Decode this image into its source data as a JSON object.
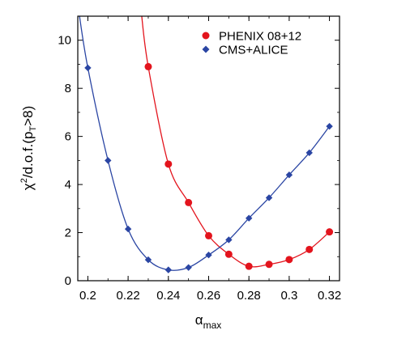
{
  "chart_data": {
    "type": "line",
    "xlabel": "α",
    "xlabel_sub": "max",
    "ylabel": "χ",
    "ylabel_sup": "2",
    "ylabel_rest": "/d.o.f.(p",
    "ylabel_sub": "T",
    "ylabel_end": ">8)",
    "xlim": [
      0.195,
      0.325
    ],
    "ylim": [
      0,
      11
    ],
    "x_ticks": [
      0.2,
      0.22,
      0.24,
      0.26,
      0.28,
      0.3,
      0.32
    ],
    "x_tick_labels": [
      "0.2",
      "0.22",
      "0.24",
      "0.26",
      "0.28",
      "0.3",
      "0.32"
    ],
    "y_ticks": [
      0,
      2,
      4,
      6,
      8,
      10
    ],
    "y_tick_labels": [
      "0",
      "2",
      "4",
      "6",
      "8",
      "10"
    ],
    "legend_position": "top-right",
    "grid": false,
    "series": [
      {
        "name": "PHENIX 08+12",
        "color": "#e3141d",
        "marker": "circle",
        "x": [
          0.23,
          0.24,
          0.25,
          0.26,
          0.27,
          0.28,
          0.29,
          0.3,
          0.31,
          0.32
        ],
        "y": [
          8.9,
          4.85,
          3.25,
          1.87,
          1.1,
          0.6,
          0.68,
          0.88,
          1.3,
          2.03
        ],
        "curve_extends_to": [
          0.2265,
          11.2
        ]
      },
      {
        "name": "CMS+ALICE",
        "color": "#2a45a3",
        "marker": "diamond",
        "x": [
          0.2,
          0.21,
          0.22,
          0.23,
          0.24,
          0.25,
          0.26,
          0.27,
          0.28,
          0.29,
          0.3,
          0.31,
          0.32
        ],
        "y": [
          8.85,
          5.0,
          2.15,
          0.87,
          0.45,
          0.55,
          1.07,
          1.7,
          2.6,
          3.45,
          4.4,
          5.32,
          6.42
        ],
        "curve_extends_to": [
          0.1955,
          11.2
        ]
      }
    ]
  }
}
